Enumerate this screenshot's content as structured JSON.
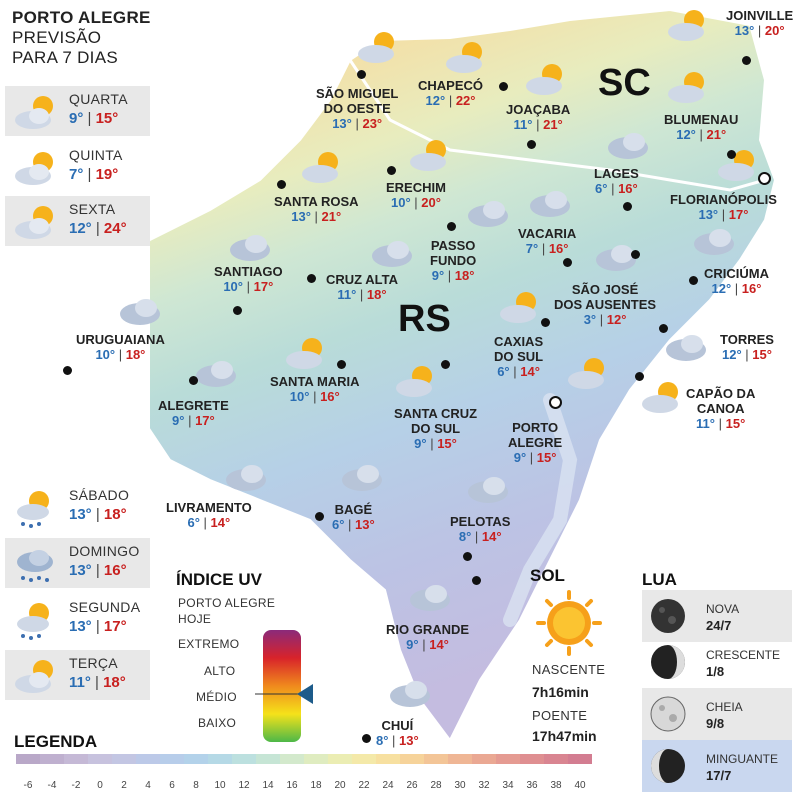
{
  "header": {
    "line1": "PORTO ALEGRE",
    "line2": "PREVISÃO",
    "line3": "PARA 7 DIAS"
  },
  "days": [
    {
      "name": "QUARTA",
      "min": "9°",
      "max": "15°",
      "icon": "partly-cloudy-icon"
    },
    {
      "name": "QUINTA",
      "min": "7°",
      "max": "19°",
      "icon": "partly-cloudy-icon"
    },
    {
      "name": "SEXTA",
      "min": "12°",
      "max": "24°",
      "icon": "partly-cloudy-icon"
    },
    {
      "name": "SÁBADO",
      "min": "13°",
      "max": "18°",
      "icon": "sun-rain-icon"
    },
    {
      "name": "DOMINGO",
      "min": "13°",
      "max": "16°",
      "icon": "rain-cloud-icon"
    },
    {
      "name": "SEGUNDA",
      "min": "13°",
      "max": "17°",
      "icon": "sun-rain-icon"
    },
    {
      "name": "TERÇA",
      "min": "11°",
      "max": "18°",
      "icon": "partly-cloudy-icon"
    }
  ],
  "map": {
    "state_label": "RS",
    "neighbor_label": "SC"
  },
  "cities": [
    {
      "name": "JOINVILLE",
      "min": "13°",
      "max": "20°"
    },
    {
      "name": "SÃO MIGUEL DO OESTE",
      "l1": "SÃO MIGUEL",
      "l2": "DO OESTE",
      "min": "13°",
      "max": "23°"
    },
    {
      "name": "CHAPECÓ",
      "min": "12°",
      "max": "22°"
    },
    {
      "name": "JOAÇABA",
      "min": "11°",
      "max": "21°"
    },
    {
      "name": "BLUMENAU",
      "min": "12°",
      "max": "21°"
    },
    {
      "name": "LAGES",
      "min": "6°",
      "max": "16°"
    },
    {
      "name": "FLORIANÓPOLIS",
      "min": "13°",
      "max": "17°"
    },
    {
      "name": "SANTA ROSA",
      "min": "13°",
      "max": "21°"
    },
    {
      "name": "ERECHIM",
      "min": "10°",
      "max": "20°"
    },
    {
      "name": "PASSO FUNDO",
      "l1": "PASSO",
      "l2": "FUNDO",
      "min": "9°",
      "max": "18°"
    },
    {
      "name": "VACARIA",
      "min": "7°",
      "max": "16°"
    },
    {
      "name": "SANTIAGO",
      "min": "10°",
      "max": "17°"
    },
    {
      "name": "CRUZ ALTA",
      "min": "11°",
      "max": "18°"
    },
    {
      "name": "CRICIÚMA",
      "min": "12°",
      "max": "16°"
    },
    {
      "name": "SÃO JOSÉ DOS AUSENTES",
      "l1": "SÃO JOSÉ",
      "l2": "DOS AUSENTES",
      "min": "3°",
      "max": "12°"
    },
    {
      "name": "URUGUAIANA",
      "min": "10°",
      "max": "18°"
    },
    {
      "name": "CAXIAS DO SUL",
      "l1": "CAXIAS",
      "l2": "DO SUL",
      "min": "6°",
      "max": "14°"
    },
    {
      "name": "TORRES",
      "min": "12°",
      "max": "15°"
    },
    {
      "name": "SANTA MARIA",
      "min": "10°",
      "max": "16°"
    },
    {
      "name": "ALEGRETE",
      "min": "9°",
      "max": "17°"
    },
    {
      "name": "CAPÃO DA CANOA",
      "l1": "CAPÃO DA",
      "l2": "CANOA",
      "min": "11°",
      "max": "15°"
    },
    {
      "name": "SANTA CRUZ DO SUL",
      "l1": "SANTA CRUZ",
      "l2": "DO SUL",
      "min": "9°",
      "max": "15°"
    },
    {
      "name": "PORTO ALEGRE",
      "l1": "PORTO",
      "l2": "ALEGRE",
      "min": "9°",
      "max": "15°"
    },
    {
      "name": "LIVRAMENTO",
      "min": "6°",
      "max": "14°"
    },
    {
      "name": "BAGÉ",
      "min": "6°",
      "max": "13°"
    },
    {
      "name": "PELOTAS",
      "min": "8°",
      "max": "14°"
    },
    {
      "name": "RIO GRANDE",
      "min": "9°",
      "max": "14°"
    },
    {
      "name": "CHUÍ",
      "min": "8°",
      "max": "13°"
    }
  ],
  "uv": {
    "title": "ÍNDICE UV",
    "subtitle1": "PORTO ALEGRE",
    "subtitle2": "HOJE",
    "levels": [
      "EXTREMO",
      "ALTO",
      "MÉDIO",
      "BAIXO"
    ],
    "current_level": "MÉDIO"
  },
  "sun": {
    "title": "SOL",
    "sunrise_label": "NASCENTE",
    "sunrise": "7h16min",
    "sunset_label": "POENTE",
    "sunset": "17h47min"
  },
  "moon": {
    "title": "LUA",
    "phases": [
      {
        "name": "NOVA",
        "date": "24/7"
      },
      {
        "name": "CRESCENTE",
        "date": "1/8"
      },
      {
        "name": "CHEIA",
        "date": "9/8"
      },
      {
        "name": "MINGUANTE",
        "date": "17/7"
      }
    ]
  },
  "legend": {
    "title": "LEGENDA",
    "values": [
      "-6",
      "-4",
      "-2",
      "0",
      "2",
      "4",
      "6",
      "8",
      "10",
      "12",
      "14",
      "16",
      "18",
      "20",
      "22",
      "24",
      "26",
      "28",
      "30",
      "32",
      "34",
      "36",
      "38",
      "40"
    ],
    "colors": [
      "#b9a8c8",
      "#bfb0cf",
      "#c5b9d6",
      "#c7c2de",
      "#c3c6e3",
      "#bcc9e8",
      "#b7cdea",
      "#b3d2ea",
      "#b5d9e6",
      "#bce0df",
      "#c6e5d5",
      "#d3e9cc",
      "#dfecc0",
      "#ebedb3",
      "#f4e9a9",
      "#f7e0a0",
      "#f6d39a",
      "#f3c597",
      "#efb695",
      "#eaa893",
      "#e59b92",
      "#df8f91",
      "#d98591",
      "#d37d91"
    ]
  }
}
